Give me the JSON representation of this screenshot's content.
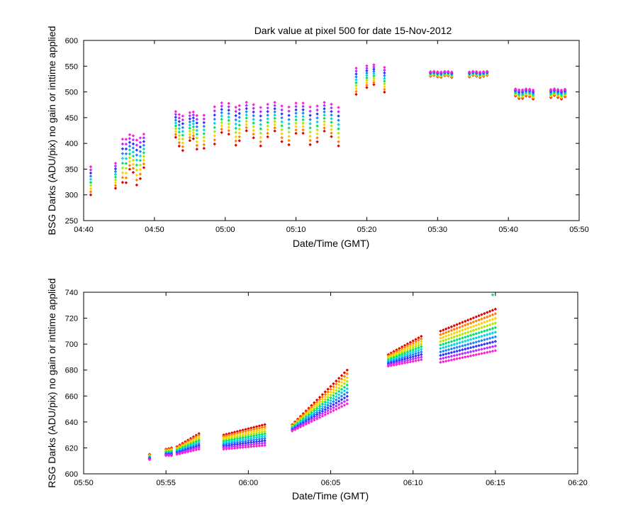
{
  "figure_title": "Dark value at pixel 500 for date 15-Nov-2012",
  "chart_data": [
    {
      "type": "scatter",
      "title": "Dark value at pixel 500 for date 15-Nov-2012",
      "xlabel": "Date/Time (GMT)",
      "ylabel": "BSG Darks (ADU/pix) no gain or inttime applied",
      "xlim": [
        "04:40",
        "05:50"
      ],
      "xticks": [
        "04:40",
        "04:50",
        "05:00",
        "05:10",
        "05:20",
        "05:30",
        "05:40",
        "05:50"
      ],
      "ylim": [
        250,
        600
      ],
      "yticks": [
        250,
        300,
        350,
        400,
        450,
        500,
        550,
        600
      ],
      "grid": false,
      "series_count": 10,
      "colors": [
        "#e00000",
        "#ff8000",
        "#ffd200",
        "#b4e600",
        "#00e070",
        "#00d8e0",
        "#2080ff",
        "#3030ff",
        "#b030ff",
        "#ff20d0"
      ],
      "groups": [
        {
          "times": [
            "04:41"
          ],
          "low": 300,
          "high": 362
        },
        {
          "times": [
            "04:44:30"
          ],
          "low": 305,
          "high": 366
        },
        {
          "times": [
            "04:45:30",
            "04:46",
            "04:46:30",
            "04:47",
            "04:47:30",
            "04:48",
            "04:48:30"
          ],
          "low": 318,
          "high": 418
        },
        {
          "times": [
            "04:53",
            "04:53:30",
            "04:54",
            "04:55",
            "04:55:30",
            "04:56",
            "04:57"
          ],
          "low": 385,
          "high": 462
        },
        {
          "times": [
            "04:58:30",
            "04:59:30",
            "05:00:30",
            "05:01:30",
            "05:02",
            "05:03",
            "05:04",
            "05:05",
            "05:06",
            "05:07",
            "05:08",
            "05:09",
            "05:10",
            "05:11",
            "05:12",
            "05:13",
            "05:14",
            "05:15",
            "05:16"
          ],
          "low": 395,
          "high": 480
        },
        {
          "times": [
            "05:18:30",
            "05:20",
            "05:21",
            "05:22:30"
          ],
          "low": 495,
          "high": 553
        },
        {
          "times": [
            "05:29",
            "05:29:30",
            "05:30",
            "05:30:30",
            "05:31",
            "05:31:30",
            "05:32",
            "05:34:30",
            "05:35",
            "05:35:30",
            "05:36",
            "05:36:30",
            "05:37"
          ],
          "low": 528,
          "high": 540
        },
        {
          "times": [
            "05:41",
            "05:41:30",
            "05:42",
            "05:42:30",
            "05:43",
            "05:43:30",
            "05:46",
            "05:46:30",
            "05:47",
            "05:47:30",
            "05:48"
          ],
          "low": 486,
          "high": 506
        }
      ]
    },
    {
      "type": "scatter",
      "title": "",
      "xlabel": "Date/Time (GMT)",
      "ylabel": "RSG Darks (ADU/pix) no gain or inttime applied",
      "xlim": [
        "05:50",
        "06:20"
      ],
      "xticks": [
        "05:50",
        "05:55",
        "06:00",
        "06:05",
        "06:10",
        "06:15",
        "06:20"
      ],
      "ylim": [
        600,
        740
      ],
      "yticks": [
        600,
        620,
        640,
        660,
        680,
        700,
        720,
        740
      ],
      "grid": false,
      "series_count": 10,
      "colors": [
        "#e00000",
        "#ff8000",
        "#ffd200",
        "#b4e600",
        "#00e070",
        "#00d8e0",
        "#2080ff",
        "#3030ff",
        "#b030ff",
        "#ff20d0"
      ],
      "groups": [
        {
          "t0": "05:54",
          "t1": "05:54",
          "low0": 611,
          "high0": 615,
          "low1": 611,
          "high1": 615
        },
        {
          "t0": "05:55",
          "t1": "05:55:20",
          "low0": 614,
          "high0": 619,
          "low1": 614,
          "high1": 620
        },
        {
          "t0": "05:55:40",
          "t1": "05:57",
          "low0": 615,
          "high0": 621,
          "low1": 619,
          "high1": 631
        },
        {
          "t0": "05:58:30",
          "t1": "06:01",
          "low0": 619,
          "high0": 630,
          "low1": 622,
          "high1": 638
        },
        {
          "t0": "06:02:40",
          "t1": "06:06",
          "low0": 633,
          "high0": 638,
          "low1": 654,
          "high1": 680
        },
        {
          "t0": "06:08:30",
          "t1": "06:10:30",
          "low0": 683,
          "high0": 692,
          "low1": 688,
          "high1": 706
        },
        {
          "t0": "06:11:40",
          "t1": "06:15",
          "low0": 686,
          "high0": 710,
          "low1": 695,
          "high1": 727
        }
      ],
      "outliers": [
        {
          "t": "06:14:50",
          "v": 738
        }
      ]
    }
  ]
}
